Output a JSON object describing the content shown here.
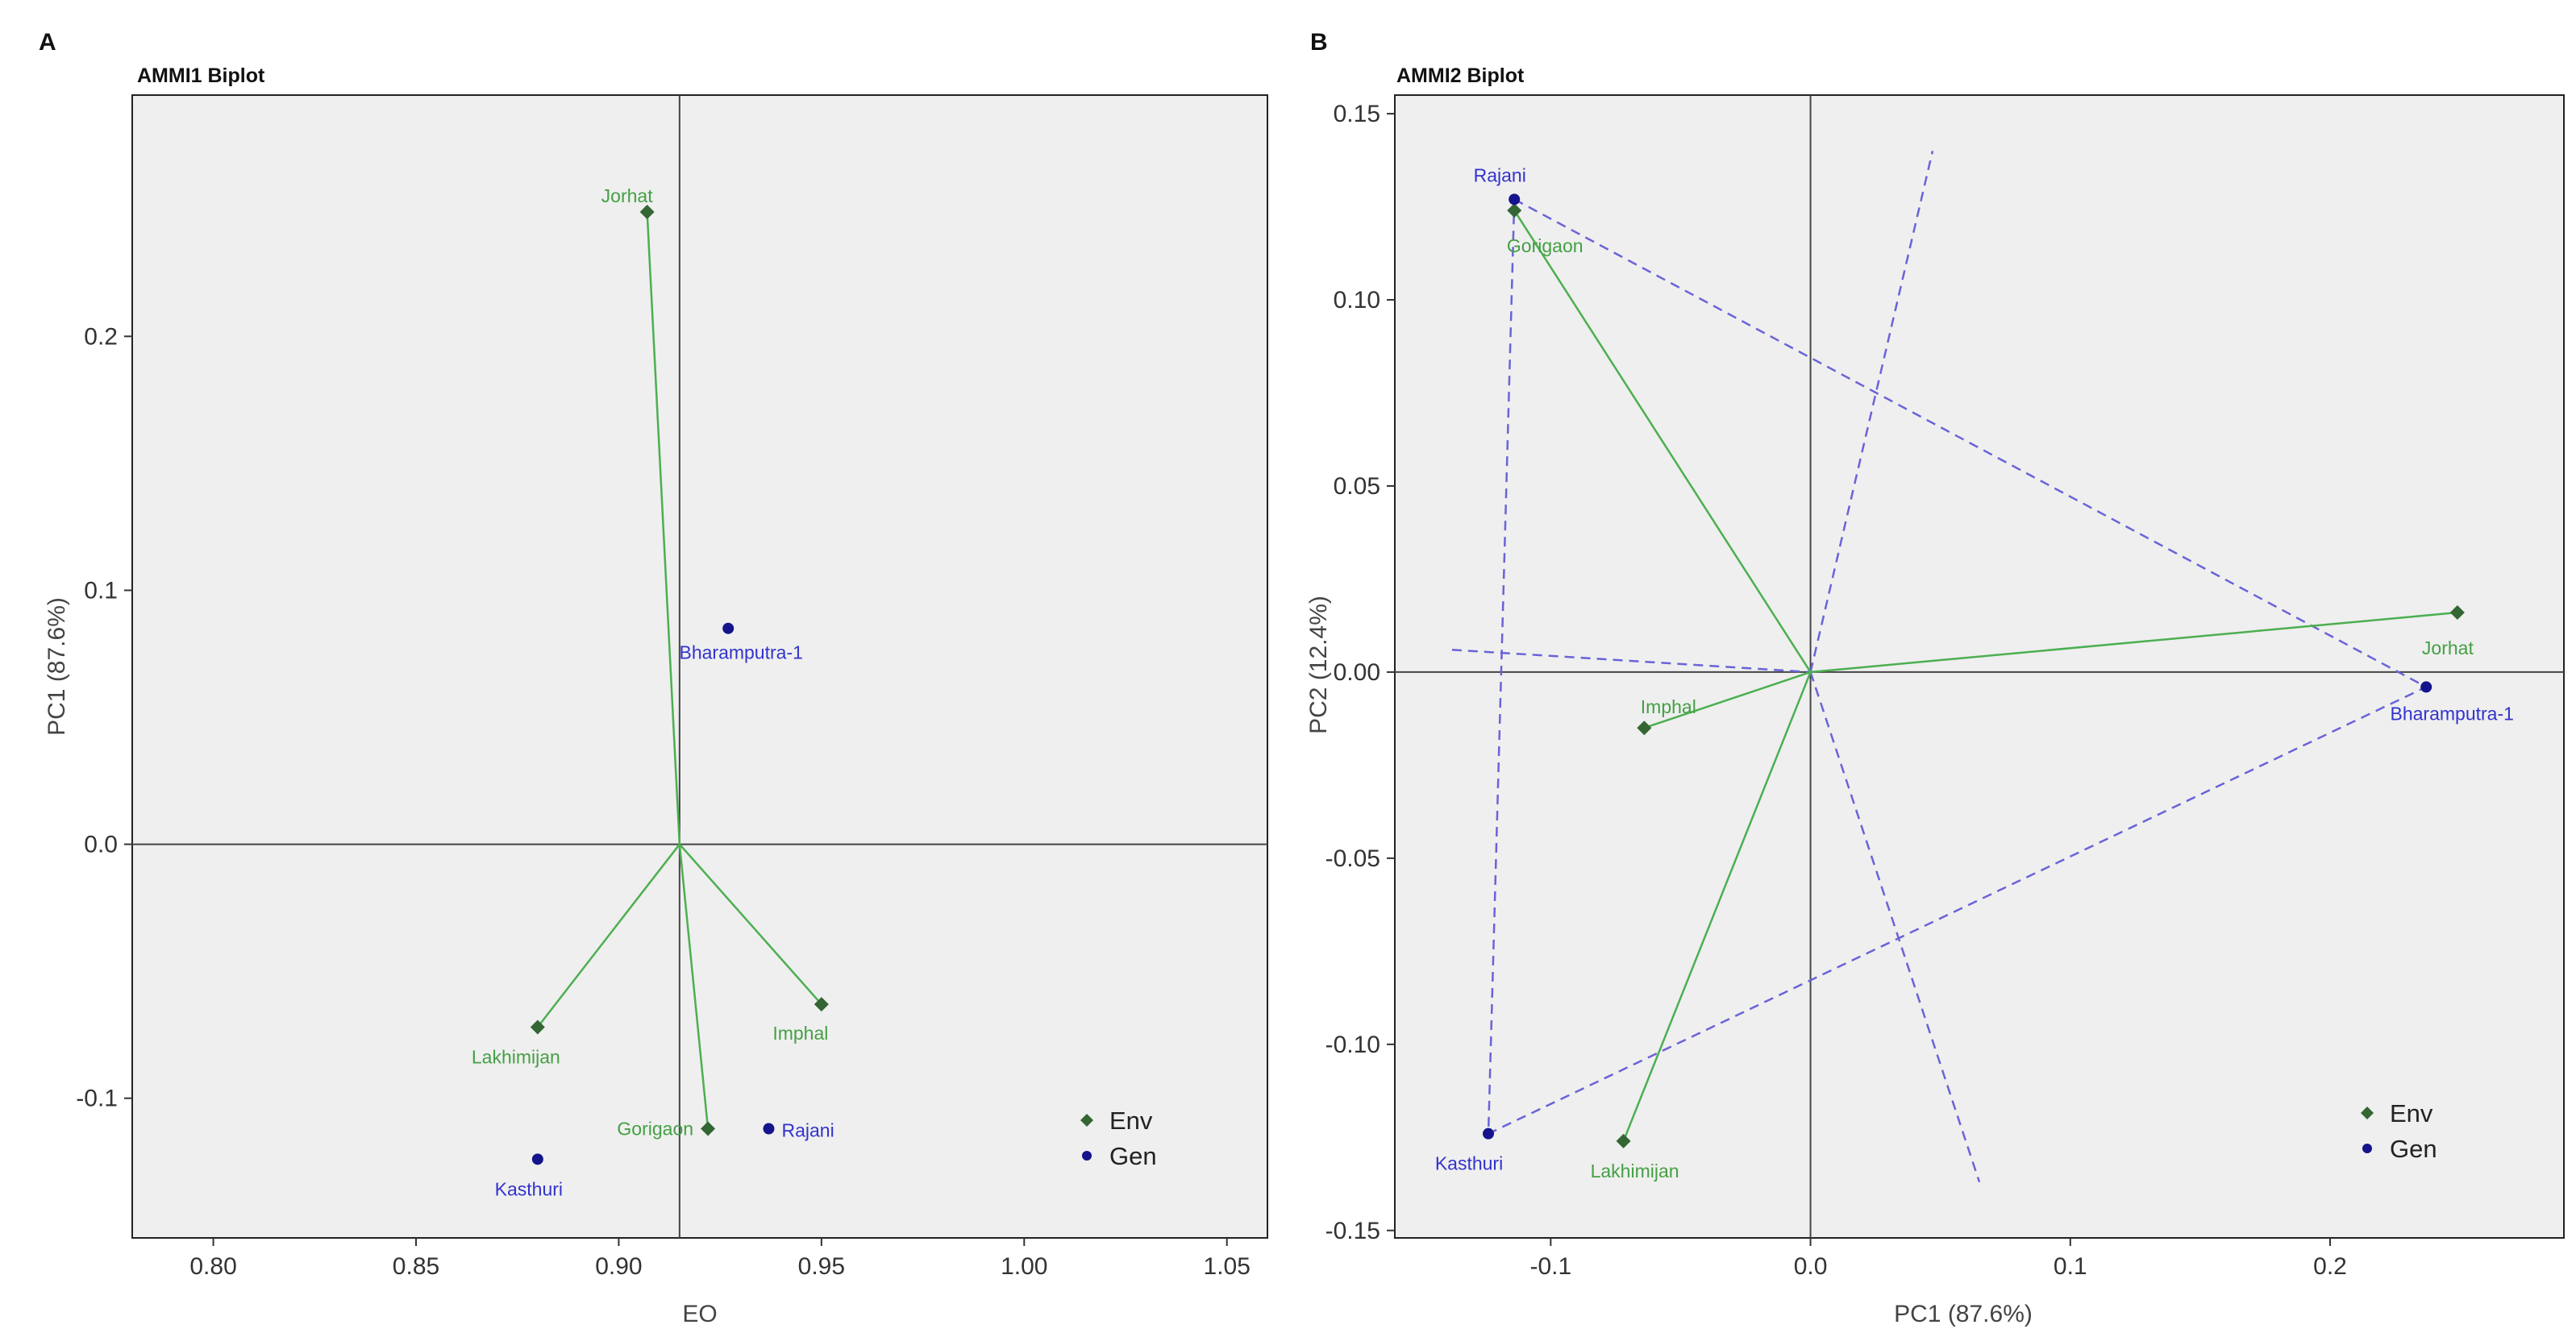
{
  "chart_data": [
    {
      "type": "scatter",
      "panel": "A",
      "title": "AMMI1 Biplot",
      "xlabel": "EO",
      "ylabel": "PC1 (87.6%)",
      "xlim": [
        0.78,
        1.06
      ],
      "ylim": [
        -0.155,
        0.295
      ],
      "xticks": [
        0.8,
        0.85,
        0.9,
        0.95,
        1.0,
        1.05
      ],
      "yticks": [
        -0.1,
        0.0,
        0.1,
        0.2
      ],
      "origin": [
        0.915,
        0.0
      ],
      "grid": false,
      "legend": {
        "position": "bottom-right",
        "entries": [
          "Env",
          "Gen"
        ]
      },
      "series": [
        {
          "name": "Env",
          "color": "#336633",
          "label_color": "#44a044",
          "marker": "diamond",
          "points": [
            {
              "label": "Jorhat",
              "x": 0.907,
              "y": 0.249
            },
            {
              "label": "Lakhimijan",
              "x": 0.88,
              "y": -0.072
            },
            {
              "label": "Imphal",
              "x": 0.95,
              "y": -0.063
            },
            {
              "label": "Gorigaon",
              "x": 0.922,
              "y": -0.112
            }
          ]
        },
        {
          "name": "Gen",
          "color": "#14148c",
          "label_color": "#3333cc",
          "marker": "circle",
          "points": [
            {
              "label": "Bharamputra-1",
              "x": 0.927,
              "y": 0.085
            },
            {
              "label": "Rajani",
              "x": 0.937,
              "y": -0.112
            },
            {
              "label": "Kasthuri",
              "x": 0.88,
              "y": -0.124
            }
          ]
        }
      ]
    },
    {
      "type": "scatter",
      "panel": "B",
      "title": "AMMI2 Biplot",
      "xlabel": "PC1 (87.6%)",
      "ylabel": "PC2 (12.4%)",
      "xlim": [
        -0.16,
        0.29
      ],
      "ylim": [
        -0.152,
        0.155
      ],
      "xticks": [
        -0.1,
        0.0,
        0.1,
        0.2
      ],
      "yticks": [
        -0.15,
        -0.1,
        -0.05,
        0.0,
        0.05,
        0.1,
        0.15
      ],
      "origin": [
        0.0,
        0.0
      ],
      "grid": false,
      "legend": {
        "position": "bottom-right",
        "entries": [
          "Env",
          "Gen"
        ]
      },
      "polygon": [
        "Rajani",
        "Bharamputra-1",
        "Kasthuri"
      ],
      "sector_lines": [
        {
          "from": [
            -0.138,
            0.006
          ],
          "to": [
            0.0,
            0.0
          ]
        },
        {
          "from": [
            0.0,
            0.0
          ],
          "to": [
            0.047,
            0.14
          ]
        },
        {
          "from": [
            0.0,
            0.0
          ],
          "to": [
            0.065,
            -0.137
          ]
        }
      ],
      "series": [
        {
          "name": "Env",
          "color": "#336633",
          "label_color": "#44a044",
          "marker": "diamond",
          "points": [
            {
              "label": "Gorigaon",
              "x": -0.114,
              "y": 0.124
            },
            {
              "label": "Jorhat",
              "x": 0.249,
              "y": 0.016
            },
            {
              "label": "Imphal",
              "x": -0.064,
              "y": -0.015
            },
            {
              "label": "Lakhimijan",
              "x": -0.072,
              "y": -0.126
            }
          ]
        },
        {
          "name": "Gen",
          "color": "#14148c",
          "label_color": "#3333cc",
          "marker": "circle",
          "points": [
            {
              "label": "Rajani",
              "x": -0.114,
              "y": 0.127
            },
            {
              "label": "Bharamputra-1",
              "x": 0.237,
              "y": -0.004
            },
            {
              "label": "Kasthuri",
              "x": -0.124,
              "y": -0.124
            }
          ]
        }
      ]
    }
  ]
}
